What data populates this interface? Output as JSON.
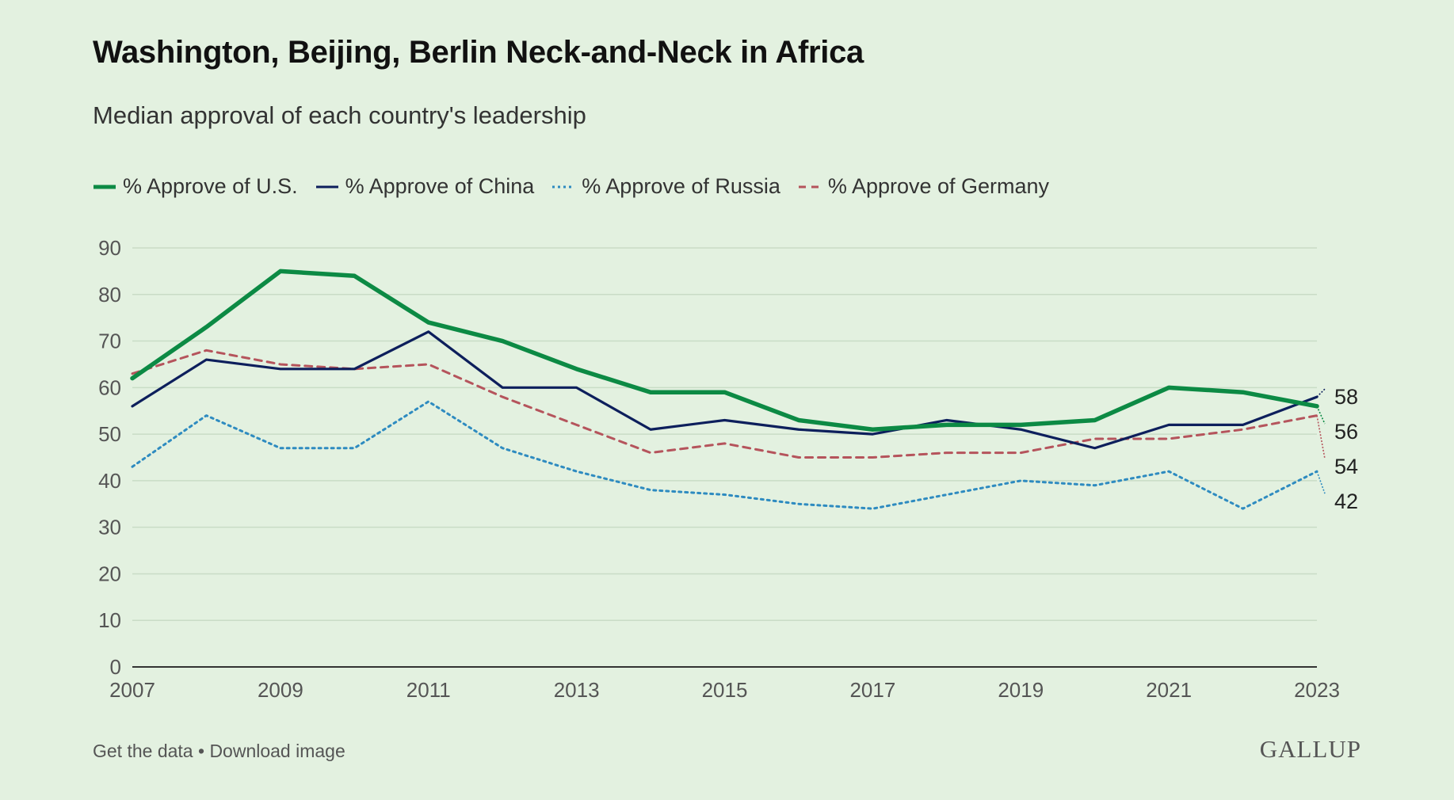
{
  "title": "Washington, Beijing, Berlin Neck-and-Neck in Africa",
  "subtitle": "Median approval of each country's leadership",
  "footer": {
    "get_data": "Get the data",
    "separator": " • ",
    "download": "Download image"
  },
  "logo": "GALLUP",
  "chart_data": {
    "type": "line",
    "title": "Washington, Beijing, Berlin Neck-and-Neck in Africa",
    "subtitle": "Median approval of each country's leadership",
    "x": [
      2007,
      2008,
      2009,
      2010,
      2011,
      2012,
      2013,
      2014,
      2015,
      2016,
      2017,
      2018,
      2019,
      2020,
      2021,
      2022,
      2023
    ],
    "x_tick_labels": [
      "2007",
      "2009",
      "2011",
      "2013",
      "2015",
      "2017",
      "2019",
      "2021",
      "2023"
    ],
    "y_ticks": [
      0,
      10,
      20,
      30,
      40,
      50,
      60,
      70,
      80,
      90
    ],
    "ylim": [
      0,
      90
    ],
    "grid": true,
    "legend_position": "top-left",
    "series": [
      {
        "name": "% Approve of U.S.",
        "color": "#0c8a44",
        "style": "solid-thick",
        "values": [
          62,
          73,
          85,
          84,
          74,
          70,
          64,
          59,
          59,
          53,
          51,
          52,
          52,
          53,
          60,
          59,
          56
        ],
        "end_label": "56"
      },
      {
        "name": "% Approve of China",
        "color": "#0d1f5c",
        "style": "solid",
        "values": [
          56,
          66,
          64,
          64,
          72,
          60,
          60,
          51,
          53,
          51,
          50,
          53,
          51,
          47,
          52,
          52,
          58
        ],
        "end_label": "58"
      },
      {
        "name": "% Approve of Russia",
        "color": "#2e8bc0",
        "style": "dotted",
        "values": [
          43,
          54,
          47,
          47,
          57,
          47,
          42,
          38,
          37,
          35,
          34,
          37,
          40,
          39,
          42,
          34,
          42
        ],
        "end_label": "42"
      },
      {
        "name": "% Approve of Germany",
        "color": "#b5545c",
        "style": "dashed",
        "values": [
          63,
          68,
          65,
          64,
          65,
          58,
          52,
          46,
          48,
          45,
          45,
          46,
          46,
          49,
          49,
          51,
          54
        ],
        "end_label": "54"
      }
    ]
  }
}
